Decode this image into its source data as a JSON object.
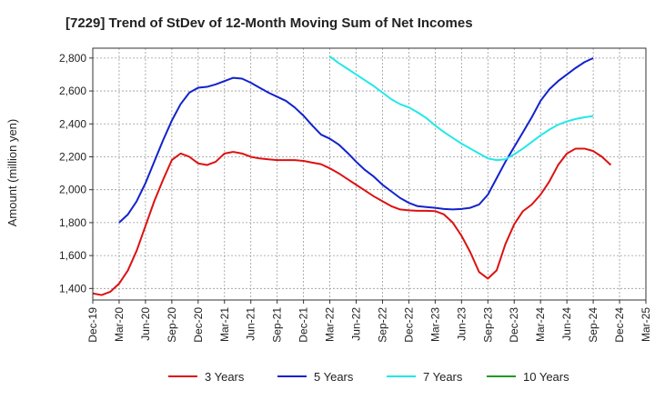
{
  "chart_data": {
    "type": "line",
    "title": "[7229]  Trend of StDev of 12-Month Moving Sum of Net Incomes",
    "ylabel": "Amount (million yen)",
    "xlabel": "",
    "ylim": [
      1330,
      2860
    ],
    "yticks": [
      1400,
      1600,
      1800,
      2000,
      2200,
      2400,
      2600,
      2800
    ],
    "ytick_labels": [
      "1,400",
      "1,600",
      "1,800",
      "2,000",
      "2,200",
      "2,400",
      "2,600",
      "2,800"
    ],
    "x_start": "Dec-19",
    "x_end": "Mar-25",
    "xtick_labels": [
      "Dec-19",
      "Mar-20",
      "Jun-20",
      "Sep-20",
      "Dec-20",
      "Mar-21",
      "Jun-21",
      "Sep-21",
      "Dec-21",
      "Mar-22",
      "Jun-22",
      "Sep-22",
      "Dec-22",
      "Mar-23",
      "Jun-23",
      "Sep-23",
      "Dec-23",
      "Mar-24",
      "Jun-24",
      "Sep-24",
      "Dec-24",
      "Mar-25"
    ],
    "grid": true,
    "legend_position": "bottom",
    "series": [
      {
        "name": "3 Years",
        "color": "#dd1111",
        "start": "Dec-19",
        "values": [
          1370,
          1360,
          1380,
          1430,
          1510,
          1630,
          1780,
          1930,
          2060,
          2180,
          2220,
          2200,
          2160,
          2150,
          2170,
          2220,
          2230,
          2220,
          2200,
          2190,
          2185,
          2180,
          2180,
          2180,
          2175,
          2165,
          2155,
          2130,
          2100,
          2065,
          2030,
          1995,
          1960,
          1930,
          1900,
          1880,
          1875,
          1872,
          1872,
          1870,
          1850,
          1800,
          1720,
          1620,
          1500,
          1460,
          1510,
          1670,
          1790,
          1870,
          1910,
          1970,
          2050,
          2150,
          2220,
          2250,
          2250,
          2235,
          2200,
          2150
        ]
      },
      {
        "name": "5 Years",
        "color": "#1122cc",
        "start": "Mar-20",
        "values": [
          1800,
          1850,
          1930,
          2040,
          2170,
          2300,
          2420,
          2520,
          2590,
          2620,
          2625,
          2640,
          2660,
          2680,
          2675,
          2650,
          2620,
          2590,
          2565,
          2540,
          2500,
          2450,
          2390,
          2335,
          2310,
          2275,
          2225,
          2170,
          2120,
          2080,
          2030,
          1990,
          1950,
          1920,
          1900,
          1895,
          1890,
          1883,
          1880,
          1883,
          1890,
          1910,
          1970,
          2070,
          2170,
          2260,
          2350,
          2440,
          2540,
          2610,
          2660,
          2700,
          2740,
          2775,
          2800
        ]
      },
      {
        "name": "7 Years",
        "color": "#22e8e8",
        "start": "Mar-22",
        "values": [
          2810,
          2770,
          2735,
          2700,
          2665,
          2630,
          2590,
          2550,
          2520,
          2500,
          2470,
          2435,
          2390,
          2350,
          2315,
          2280,
          2250,
          2220,
          2190,
          2180,
          2185,
          2215,
          2250,
          2290,
          2330,
          2365,
          2395,
          2415,
          2430,
          2440,
          2448
        ]
      },
      {
        "name": "10 Years",
        "color": "#229922",
        "start": "Mar-22",
        "values": []
      }
    ]
  }
}
